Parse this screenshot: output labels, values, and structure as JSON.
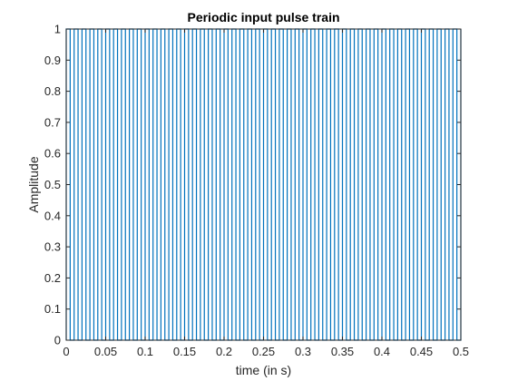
{
  "chart_data": {
    "type": "line",
    "title": "Periodic input pulse train",
    "xlabel": "time (in s)",
    "ylabel": "Amplitude",
    "xlim": [
      0,
      0.5
    ],
    "ylim": [
      0,
      1
    ],
    "x_ticks": [
      0,
      0.05,
      0.1,
      0.15,
      0.2,
      0.25,
      0.3,
      0.35,
      0.4,
      0.45,
      0.5
    ],
    "x_tick_labels": [
      "0",
      "0.05",
      "0.1",
      "0.15",
      "0.2",
      "0.25",
      "0.3",
      "0.35",
      "0.4",
      "0.45",
      "0.5"
    ],
    "y_ticks": [
      0,
      0.1,
      0.2,
      0.3,
      0.4,
      0.5,
      0.6,
      0.7,
      0.8,
      0.9,
      1
    ],
    "y_tick_labels": [
      "0",
      "0.1",
      "0.2",
      "0.3",
      "0.4",
      "0.5",
      "0.6",
      "0.7",
      "0.8",
      "0.9",
      "1"
    ],
    "grid": false,
    "series": [
      {
        "name": "pulse train",
        "color": "#0072BD",
        "period_s": 0.01,
        "pulse_width_s": 0.005,
        "amplitude_high": 1,
        "amplitude_low": 0,
        "t_start": 0,
        "t_end": 0.5
      }
    ]
  },
  "colors": {
    "axis": "#262626",
    "line": "#0072BD",
    "background": "#ffffff"
  }
}
